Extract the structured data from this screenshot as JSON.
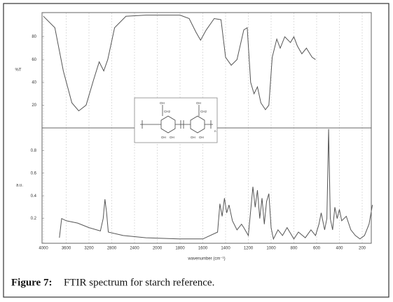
{
  "chart_data": [
    {
      "type": "line",
      "ylabel": "%T",
      "color": "#555555",
      "xlim": [
        4050,
        100
      ],
      "ylim": [
        0,
        100
      ],
      "yticks": [
        20,
        40,
        60,
        80
      ],
      "x": [
        4000,
        3800,
        3650,
        3500,
        3380,
        3250,
        3120,
        3020,
        2940,
        2870,
        2750,
        2550,
        2200,
        2000,
        1800,
        1720,
        1660,
        1620,
        1570,
        1500,
        1440,
        1400,
        1350,
        1300,
        1240,
        1210,
        1180,
        1150,
        1120,
        1090,
        1050,
        1020,
        990,
        950,
        920,
        880,
        830,
        800,
        770,
        730,
        690,
        640,
        610
      ],
      "values": [
        98,
        88,
        50,
        22,
        15,
        20,
        42,
        58,
        50,
        60,
        88,
        98,
        99,
        99,
        99,
        96,
        84,
        77,
        86,
        96,
        95,
        62,
        55,
        60,
        86,
        88,
        40,
        30,
        36,
        22,
        16,
        20,
        62,
        78,
        70,
        80,
        75,
        80,
        72,
        65,
        70,
        62,
        60
      ]
    },
    {
      "type": "line",
      "ylabel": "a.u.",
      "xlabel": "wavenumber (cm⁻¹)",
      "color": "#555555",
      "xlim": [
        4050,
        100
      ],
      "ylim": [
        0,
        1
      ],
      "yticks": [
        0.2,
        0.4,
        0.6,
        0.8
      ],
      "xticks": [
        4000,
        3600,
        3200,
        2800,
        2400,
        2000,
        1800,
        1600,
        1400,
        1200,
        1000,
        800,
        600,
        400,
        200
      ],
      "x": [
        3720,
        3680,
        3600,
        3400,
        3200,
        3000,
        2950,
        2920,
        2890,
        2860,
        2600,
        2200,
        1800,
        1600,
        1470,
        1450,
        1430,
        1410,
        1390,
        1370,
        1340,
        1300,
        1260,
        1240,
        1200,
        1160,
        1140,
        1120,
        1100,
        1080,
        1060,
        1040,
        1020,
        1000,
        980,
        940,
        900,
        860,
        800,
        760,
        700,
        650,
        610,
        580,
        560,
        530,
        510,
        495,
        480,
        460,
        440,
        420,
        400,
        380,
        340,
        300,
        260,
        220,
        180,
        140,
        110
      ],
      "values": [
        0.03,
        0.2,
        0.18,
        0.16,
        0.12,
        0.09,
        0.2,
        0.37,
        0.25,
        0.08,
        0.05,
        0.03,
        0.02,
        0.02,
        0.08,
        0.33,
        0.22,
        0.38,
        0.25,
        0.32,
        0.18,
        0.1,
        0.15,
        0.12,
        0.05,
        0.48,
        0.3,
        0.45,
        0.2,
        0.38,
        0.15,
        0.35,
        0.42,
        0.12,
        0.02,
        0.1,
        0.05,
        0.12,
        0.02,
        0.08,
        0.03,
        0.1,
        0.05,
        0.15,
        0.25,
        0.1,
        0.2,
        0.99,
        0.2,
        0.1,
        0.3,
        0.2,
        0.28,
        0.18,
        0.22,
        0.1,
        0.05,
        0.02,
        0.05,
        0.15,
        0.32
      ]
    }
  ],
  "structure_labels": [
    "OH",
    "CH2",
    "OH",
    "OH",
    "OH",
    "CH2",
    "OH",
    "OH",
    "n"
  ],
  "caption": {
    "label": "Figure 7:",
    "text": "FTIR spectrum for starch reference."
  }
}
